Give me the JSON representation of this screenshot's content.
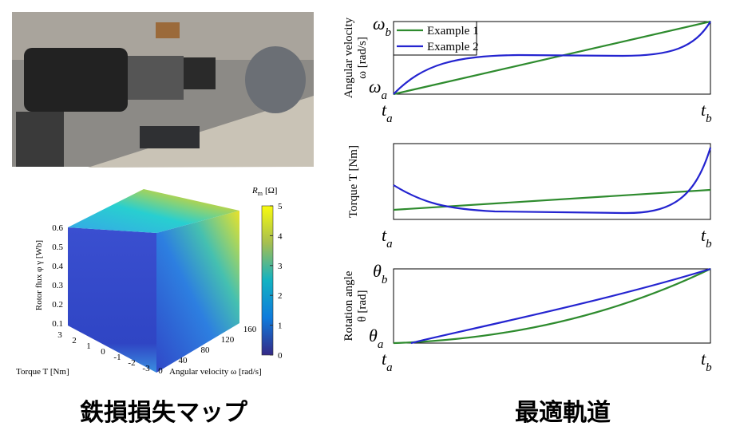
{
  "cube": {
    "colorbar_label": {
      "symbol": "R",
      "sub": "m",
      "unit": "[Ω]"
    },
    "colorbar_ticks": [
      0,
      1,
      2,
      3,
      4,
      5
    ],
    "z_label": "Rotor flux φ γ [Wb]",
    "z_ticks": [
      0.1,
      0.2,
      0.3,
      0.4,
      0.5,
      0.6
    ],
    "torque_label": "Torque T [Nm]",
    "torque_ticks": [
      3,
      2,
      1,
      0,
      -1,
      -2,
      -3
    ],
    "speed_label": "Angular velocity ω [rad/s]",
    "speed_ticks": [
      0,
      40,
      80,
      120,
      160
    ]
  },
  "plots": [
    {
      "ylabel": [
        "Angular velocity",
        "ω [rad/s]"
      ],
      "yticks": [
        {
          "symbol": "ω",
          "sub": "b"
        },
        {
          "symbol": "ω",
          "sub": "a"
        }
      ],
      "xticks": [
        {
          "symbol": "t",
          "sub": "a"
        },
        {
          "symbol": "t",
          "sub": "b"
        }
      ],
      "legend": [
        "Example 1",
        "Example 2"
      ]
    },
    {
      "ylabel": [
        "Torque  T [Nm]"
      ],
      "xticks": [
        {
          "symbol": "t",
          "sub": "a"
        },
        {
          "symbol": "t",
          "sub": "b"
        }
      ]
    },
    {
      "ylabel": [
        "Rotation angle",
        "θ [rad]"
      ],
      "yticks": [
        {
          "symbol": "θ",
          "sub": "b"
        },
        {
          "symbol": "θ",
          "sub": "a"
        }
      ],
      "xticks": [
        {
          "symbol": "t",
          "sub": "a"
        },
        {
          "symbol": "t",
          "sub": "b"
        }
      ]
    }
  ],
  "captions": [
    "鉄損損失マップ",
    "最適軌道"
  ]
}
